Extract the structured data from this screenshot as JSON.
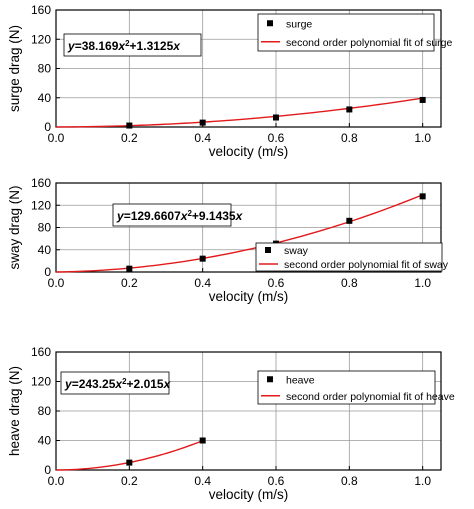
{
  "chart_data": [
    {
      "type": "scatter",
      "xlabel": "velocity (m/s)",
      "ylabel": "surge drag (N)",
      "xlim": [
        0.0,
        1.05
      ],
      "ylim": [
        0,
        160
      ],
      "xticks": [
        0.0,
        0.2,
        0.4,
        0.6,
        0.8,
        1.0
      ],
      "xtick_labels": [
        "0.0",
        "0.2",
        "0.4",
        "0.6",
        "0.8",
        "1.0"
      ],
      "yticks": [
        0,
        40,
        80,
        120,
        160
      ],
      "ytick_labels": [
        "0",
        "40",
        "80",
        "120",
        "160"
      ],
      "grid": true,
      "legend_position": "top-right",
      "series": [
        {
          "name": "surge",
          "kind": "points",
          "x": [
            0.2,
            0.4,
            0.6,
            0.8,
            1.0
          ],
          "y": [
            2,
            6,
            13,
            24,
            37
          ],
          "color": "#000000"
        },
        {
          "name": "second order polynomial fit of surge",
          "kind": "fit",
          "a": 38.169,
          "b": 1.3125,
          "x_range": [
            0.0,
            1.0
          ],
          "color": "#e31a1c"
        }
      ],
      "equation": {
        "y": "y",
        "eq1": "=38.169",
        "x": "x",
        "sup": "2",
        "eq2": "+1.3125",
        "x2": "x"
      },
      "equation_position": "top-left"
    },
    {
      "type": "scatter",
      "xlabel": "velocity (m/s)",
      "ylabel": "sway drag (N)",
      "xlim": [
        0.0,
        1.05
      ],
      "ylim": [
        0,
        160
      ],
      "xticks": [
        0.0,
        0.2,
        0.4,
        0.6,
        0.8,
        1.0
      ],
      "xtick_labels": [
        "0.0",
        "0.2",
        "0.4",
        "0.6",
        "0.8",
        "1.0"
      ],
      "yticks": [
        0,
        40,
        80,
        120,
        160
      ],
      "ytick_labels": [
        "0",
        "40",
        "80",
        "120",
        "160"
      ],
      "grid": true,
      "legend_position": "bottom-right",
      "series": [
        {
          "name": "sway",
          "kind": "points",
          "x": [
            0.2,
            0.4,
            0.6,
            0.8,
            1.0
          ],
          "y": [
            6,
            24,
            51,
            92,
            136
          ],
          "color": "#000000"
        },
        {
          "name": "second order polynomial fit of sway",
          "kind": "fit",
          "a": 129.6607,
          "b": 9.1435,
          "x_range": [
            0.0,
            1.0
          ],
          "color": "#e31a1c"
        }
      ],
      "equation": {
        "y": "y",
        "eq1": "=129.6607",
        "x": "x",
        "sup": "2",
        "eq2": "+9.1435",
        "x2": "x"
      },
      "equation_position": "top-left"
    },
    {
      "type": "scatter",
      "xlabel": "velocity (m/s)",
      "ylabel": "heave drag (N)",
      "xlim": [
        0.0,
        1.05
      ],
      "ylim": [
        0,
        160
      ],
      "xticks": [
        0.0,
        0.2,
        0.4,
        0.6,
        0.8,
        1.0
      ],
      "xtick_labels": [
        "0.0",
        "0.2",
        "0.4",
        "0.6",
        "0.8",
        "1.0"
      ],
      "yticks": [
        0,
        40,
        80,
        120,
        160
      ],
      "ytick_labels": [
        "0",
        "40",
        "80",
        "120",
        "160"
      ],
      "grid": true,
      "legend_position": "top-right",
      "series": [
        {
          "name": "heave",
          "kind": "points",
          "x": [
            0.2,
            0.4
          ],
          "y": [
            10,
            40
          ],
          "color": "#000000"
        },
        {
          "name": "second order polynomial fit of heave",
          "kind": "fit",
          "a": 243.25,
          "b": 2.015,
          "x_range": [
            0.0,
            0.4
          ],
          "color": "#e31a1c"
        }
      ],
      "equation": {
        "y": "y",
        "eq1": "=243.25",
        "x": "x",
        "sup": "2",
        "eq2": "+2.015",
        "x2": "x"
      },
      "equation_position": "top-left"
    }
  ]
}
